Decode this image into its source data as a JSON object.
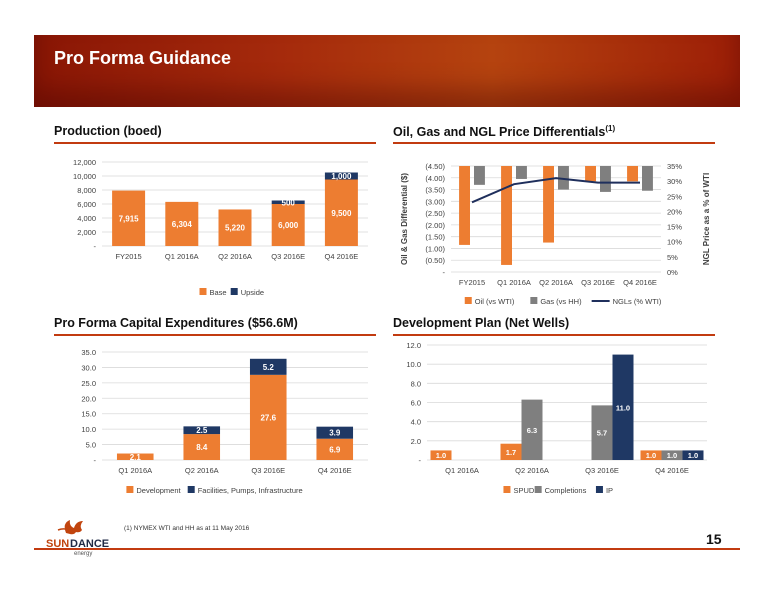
{
  "header": {
    "title": "Pro Forma Guidance"
  },
  "footer": {
    "note": "(1) NYMEX WTI and HH as at 11 May 2016",
    "page_number": "15",
    "logo_word1": "SUN",
    "logo_word2": "DANCE",
    "logo_sub": "energy"
  },
  "colors": {
    "orange": "#ed7d31",
    "navy": "#1f3864",
    "gray": "#7f7f7f",
    "navy_line": "#1f2f5c"
  },
  "chart_data": [
    {
      "id": "production",
      "type": "bar",
      "title": "Production (boed)",
      "categories": [
        "FY2015",
        "Q1 2016A",
        "Q2 2016A",
        "Q3 2016E",
        "Q4 2016E"
      ],
      "series": [
        {
          "name": "Base",
          "values": [
            7915,
            6304,
            5220,
            6000,
            9500
          ],
          "labels": [
            "7,915",
            "6,304",
            "5,220",
            "6,000",
            "9,500"
          ]
        },
        {
          "name": "Upside",
          "values": [
            0,
            0,
            0,
            500,
            1000
          ],
          "labels": [
            "",
            "",
            "",
            "500",
            "1,000"
          ]
        }
      ],
      "stacked": true,
      "ylim": [
        0,
        12000
      ],
      "yticks": [
        "-",
        "2,000",
        "4,000",
        "6,000",
        "8,000",
        "10,000",
        "12,000"
      ],
      "legend": "bottom"
    },
    {
      "id": "differentials",
      "type": "bar",
      "title": "Oil, Gas and NGL Price Differentials",
      "title_sup": "(1)",
      "categories": [
        "FY2015",
        "Q1 2016A",
        "Q2 2016A",
        "Q3 2016E",
        "Q4 2016E"
      ],
      "series": [
        {
          "name": "Oil (vs WTI)",
          "values": [
            3.35,
            4.2,
            3.25,
            0.65,
            0.65
          ]
        },
        {
          "name": "Gas (vs HH)",
          "values": [
            0.8,
            0.55,
            1.0,
            1.1,
            1.05
          ]
        },
        {
          "name": "NGLs (% WTI)",
          "type": "line",
          "axis": "right",
          "values": [
            23,
            29,
            31,
            29.5,
            29.5
          ]
        }
      ],
      "ylabel": "Oil & Gas Differential ($)",
      "ylabel_right": "NGL Price as a % of WTI",
      "ylim": [
        0,
        4.5
      ],
      "yticks": [
        "-",
        "(0.50)",
        "(1.00)",
        "(1.50)",
        "(2.00)",
        "(2.50)",
        "(3.00)",
        "(3.50)",
        "(4.00)",
        "(4.50)"
      ],
      "ylim_right": [
        0,
        35
      ],
      "yticks_right": [
        "0%",
        "5%",
        "10%",
        "15%",
        "20%",
        "25%",
        "30%",
        "35%"
      ],
      "legend": "bottom"
    },
    {
      "id": "capex",
      "type": "bar",
      "title": "Pro Forma Capital Expenditures ($56.6M)",
      "categories": [
        "Q1 2016A",
        "Q2 2016A",
        "Q3 2016E",
        "Q4 2016E"
      ],
      "series": [
        {
          "name": "Development",
          "values": [
            2.1,
            8.4,
            27.6,
            6.9
          ],
          "labels": [
            "2.1",
            "8.4",
            "27.6",
            "6.9"
          ]
        },
        {
          "name": "Facilities, Pumps, Infrastructure",
          "values": [
            0,
            2.5,
            5.2,
            3.9
          ],
          "labels": [
            "",
            "2.5",
            "5.2",
            "3.9"
          ]
        }
      ],
      "stacked": true,
      "ylim": [
        0,
        35
      ],
      "yticks": [
        "-",
        "5.0",
        "10.0",
        "15.0",
        "20.0",
        "25.0",
        "30.0",
        "35.0"
      ],
      "legend": "bottom"
    },
    {
      "id": "wells",
      "type": "bar",
      "title": "Development Plan (Net Wells)",
      "categories": [
        "Q1 2016A",
        "Q2 2016A",
        "Q3 2016E",
        "Q4 2016E"
      ],
      "series": [
        {
          "name": "SPUD",
          "values": [
            1.0,
            1.7,
            0,
            1.0
          ],
          "labels": [
            "1.0",
            "1.7",
            "",
            "1.0"
          ]
        },
        {
          "name": "Completions",
          "values": [
            0,
            6.3,
            5.7,
            1.0
          ],
          "labels": [
            "",
            "6.3",
            "5.7",
            "1.0"
          ]
        },
        {
          "name": "IP",
          "values": [
            0,
            0,
            11.0,
            1.0
          ],
          "labels": [
            "",
            "",
            "11.0",
            "1.0"
          ]
        }
      ],
      "stacked": false,
      "ylim": [
        0,
        12
      ],
      "yticks": [
        "-",
        "2.0",
        "4.0",
        "6.0",
        "8.0",
        "10.0",
        "12.0"
      ],
      "legend": "bottom"
    }
  ]
}
